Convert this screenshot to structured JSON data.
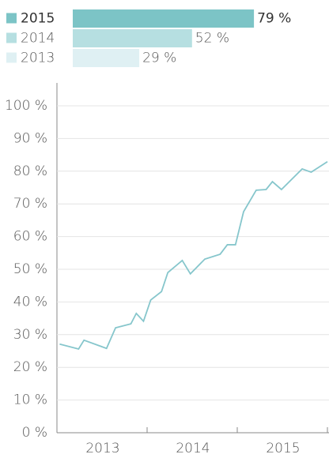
{
  "chart_data": [
    {
      "type": "hbar",
      "categories": [
        "2015",
        "2014",
        "2013"
      ],
      "values": [
        79,
        52,
        29
      ],
      "value_labels": [
        "79 %",
        "52 %",
        "29 %"
      ],
      "colors": [
        "#7cc4c6",
        "#b6dfe1",
        "#dff0f3"
      ],
      "xlim": [
        0,
        100
      ]
    },
    {
      "type": "line",
      "categories": [
        "2013",
        "2014",
        "2015"
      ],
      "x": [
        0.03,
        0.24,
        0.3,
        0.55,
        0.65,
        0.82,
        0.88,
        0.96,
        1.04,
        1.16,
        1.23,
        1.39,
        1.48,
        1.64,
        1.81,
        1.89,
        1.98,
        2.07,
        2.21,
        2.32,
        2.39,
        2.49,
        2.72,
        2.82,
        3.0
      ],
      "values": [
        27.1,
        25.6,
        28.3,
        25.8,
        32.1,
        33.3,
        36.5,
        34.1,
        40.6,
        43.2,
        49.0,
        52.7,
        48.6,
        53.1,
        54.6,
        57.5,
        57.5,
        67.6,
        74.2,
        74.4,
        76.8,
        74.4,
        80.7,
        79.7,
        82.9
      ],
      "color": "#86c6cc",
      "xlim": [
        0,
        3
      ],
      "xticks": [
        0,
        1,
        2,
        3
      ],
      "ylim": [
        0,
        100
      ],
      "yticks": [
        {
          "value": 0,
          "label": "0 %"
        },
        {
          "value": 10,
          "label": "10 %"
        },
        {
          "value": 20,
          "label": "20 %"
        },
        {
          "value": 30,
          "label": "30 %"
        },
        {
          "value": 40,
          "label": "40 %"
        },
        {
          "value": 50,
          "label": "50 %"
        },
        {
          "value": 60,
          "label": "60 %"
        },
        {
          "value": 70,
          "label": "70 %"
        },
        {
          "value": 80,
          "label": "80 %"
        },
        {
          "value": 90,
          "label": "90 %"
        },
        {
          "value": 100,
          "label": "100 %"
        }
      ],
      "grid": true
    }
  ]
}
